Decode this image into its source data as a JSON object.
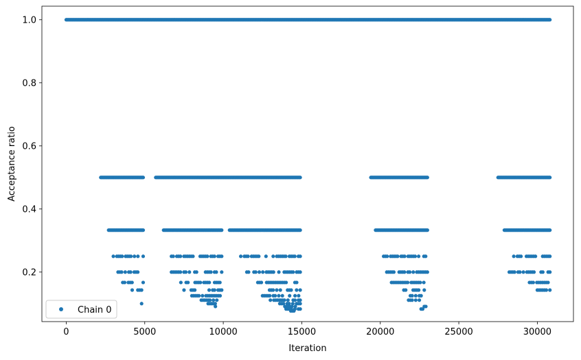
{
  "chart_data": {
    "type": "scatter",
    "title": "",
    "xlabel": "Iteration",
    "ylabel": "Acceptance ratio",
    "xlim": [
      -1550,
      32300
    ],
    "ylim": [
      0.043,
      1.043
    ],
    "x_ticks": [
      {
        "value": 0,
        "label": "0"
      },
      {
        "value": 5000,
        "label": "5000"
      },
      {
        "value": 10000,
        "label": "10000"
      },
      {
        "value": 15000,
        "label": "15000"
      },
      {
        "value": 20000,
        "label": "20000"
      },
      {
        "value": 25000,
        "label": "25000"
      },
      {
        "value": 30000,
        "label": "30000"
      }
    ],
    "y_ticks": [
      {
        "value": 0.2,
        "label": "0.2"
      },
      {
        "value": 0.4,
        "label": "0.4"
      },
      {
        "value": 0.6,
        "label": "0.6"
      },
      {
        "value": 0.8,
        "label": "0.8"
      },
      {
        "value": 1.0,
        "label": "1.0"
      }
    ],
    "grid": false,
    "legend": {
      "position": "lower-left"
    },
    "series": [
      {
        "name": "Chain 0",
        "color": "#1f77b4",
        "marker": "circle",
        "x_range": [
          0,
          30800
        ],
        "bands": [
          {
            "y": 1.0,
            "segments": [
              [
                0,
                30800
              ]
            ]
          },
          {
            "y": 0.5,
            "segments": [
              [
                2200,
                4900
              ],
              [
                5700,
                14900
              ],
              [
                19400,
                23000
              ],
              [
                27500,
                30800
              ]
            ]
          },
          {
            "y": 0.333,
            "segments": [
              [
                2700,
                4900
              ],
              [
                6200,
                9900
              ],
              [
                10400,
                14900
              ],
              [
                19700,
                23000
              ],
              [
                27900,
                30800
              ]
            ]
          },
          {
            "y": 0.25,
            "segments": [
              [
                3000,
                4900
              ],
              [
                6700,
                9900
              ],
              [
                11000,
                14900
              ],
              [
                20100,
                23000
              ],
              [
                28500,
                30800
              ]
            ]
          },
          {
            "y": 0.2,
            "segments": [
              [
                3300,
                4900
              ],
              [
                6700,
                9900
              ],
              [
                11500,
                14900
              ],
              [
                20300,
                23000
              ],
              [
                28100,
                30800
              ]
            ]
          },
          {
            "y": 0.167,
            "segments": [
              [
                3600,
                4900
              ],
              [
                7300,
                9900
              ],
              [
                12200,
                14900
              ],
              [
                20600,
                23000
              ],
              [
                29500,
                30800
              ]
            ]
          },
          {
            "y": 0.143,
            "segments": [
              [
                4200,
                4800
              ],
              [
                7500,
                9900
              ],
              [
                12600,
                14900
              ],
              [
                21500,
                22800
              ],
              [
                30000,
                30800
              ]
            ]
          },
          {
            "y": 0.125,
            "segments": [
              [
                8000,
                9800
              ],
              [
                12500,
                14800
              ],
              [
                21800,
                22600
              ]
            ]
          },
          {
            "y": 0.111,
            "segments": [
              [
                8600,
                9700
              ],
              [
                13000,
                14900
              ],
              [
                21800,
                22600
              ]
            ]
          },
          {
            "y": 0.1,
            "segments": [
              [
                4800,
                4900
              ],
              [
                8700,
                9600
              ],
              [
                13600,
                14900
              ]
            ]
          },
          {
            "y": 0.091,
            "segments": [
              [
                9200,
                9500
              ],
              [
                13700,
                14700
              ],
              [
                22800,
                23000
              ]
            ]
          },
          {
            "y": 0.083,
            "segments": [
              [
                14000,
                14900
              ],
              [
                22600,
                22700
              ]
            ]
          },
          {
            "y": 0.077,
            "segments": [
              [
                14200,
                14500
              ]
            ]
          },
          {
            "y": 0.071,
            "segments": [
              [
                14000,
                14100
              ]
            ]
          }
        ]
      }
    ]
  }
}
